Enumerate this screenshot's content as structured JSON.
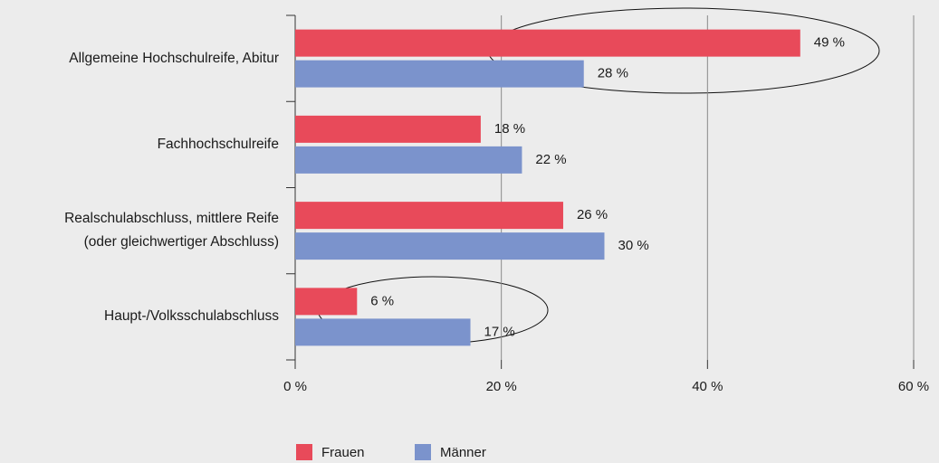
{
  "chart_data": {
    "type": "barh",
    "categories": [
      "Allgemeine Hochschulreife, Abitur",
      "Fachhochschulreife",
      "Realschulabschluss, mittlere Reife\n(oder gleichwertiger Abschluss)",
      "Haupt-/Volksschulabschluss"
    ],
    "series": [
      {
        "name": "Frauen",
        "color": "#e84a5a",
        "values": [
          49,
          18,
          26,
          6
        ],
        "value_labels": [
          "49 %",
          "18 %",
          "26 %",
          "6 %"
        ]
      },
      {
        "name": "Männer",
        "color": "#7b93cc",
        "values": [
          28,
          22,
          30,
          17
        ],
        "value_labels": [
          "28 %",
          "22 %",
          "30 %",
          "17 %"
        ]
      }
    ],
    "xlim": [
      0,
      60
    ],
    "xticks": [
      {
        "value": 0,
        "label": "0 %"
      },
      {
        "value": 20,
        "label": "20 %"
      },
      {
        "value": 40,
        "label": "40 %"
      },
      {
        "value": 60,
        "label": "60 %"
      }
    ],
    "grid": true,
    "legend": "bottom"
  }
}
